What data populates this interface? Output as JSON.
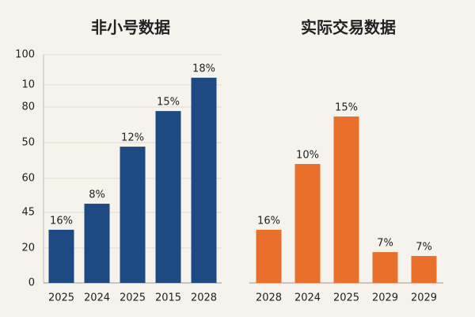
{
  "chart_data": [
    {
      "type": "bar",
      "title": "非小号数据",
      "categories": [
        "2025",
        "2024",
        "2025",
        "2015",
        "2028"
      ],
      "values": [
        23.3,
        34.7,
        59.7,
        75.3,
        89.9
      ],
      "bar_labels": [
        "16%",
        "8%",
        "12%",
        "15%",
        "18%"
      ],
      "color": "#1d4a82",
      "ylim": [
        0,
        100
      ],
      "yticks": [
        0,
        {
          "value": 15.3,
          "label": "20"
        },
        {
          "value": 30.9,
          "label": "45"
        },
        {
          "value": 45.8,
          "label": "60"
        },
        {
          "value": 61.5,
          "label": "50"
        },
        {
          "value": 77.1,
          "label": "80"
        },
        {
          "value": 86.8,
          "label": "10"
        },
        100
      ],
      "grid": true
    },
    {
      "type": "bar",
      "title": "实际交易数据",
      "categories": [
        "2028",
        "2024",
        "2025",
        "2029",
        "2029"
      ],
      "values": [
        23.3,
        52.1,
        72.9,
        13.5,
        11.8
      ],
      "bar_labels": [
        "16%",
        "10%",
        "15%",
        "7%",
        "7%"
      ],
      "color": "#e8702b",
      "ylim": [
        0,
        100
      ]
    }
  ]
}
